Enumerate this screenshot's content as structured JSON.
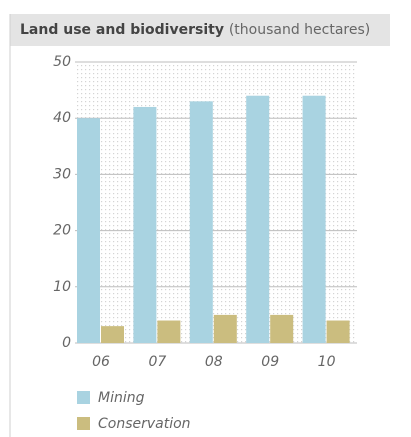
{
  "chart_data": {
    "type": "bar",
    "title": "Land use and biodiversity",
    "subtitle": "(thousand hectares)",
    "categories": [
      "06",
      "07",
      "08",
      "09",
      "10"
    ],
    "series": [
      {
        "name": "Mining",
        "color": "#a9d3e1",
        "values": [
          40,
          42,
          43,
          44,
          44
        ]
      },
      {
        "name": "Conservation",
        "color": "#cbbd7f",
        "values": [
          3,
          4,
          5,
          5,
          4
        ]
      }
    ],
    "ylim": [
      0,
      50
    ],
    "yticks": [
      0,
      10,
      20,
      30,
      40,
      50
    ],
    "grid": true,
    "legend": "bottom"
  }
}
